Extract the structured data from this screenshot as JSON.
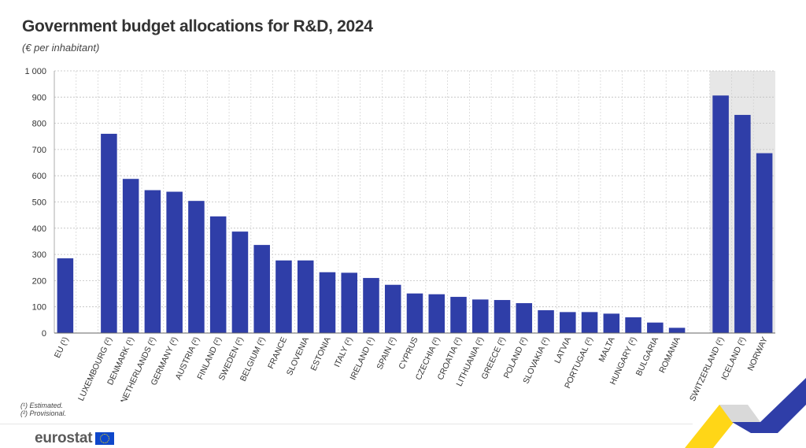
{
  "title": "Government budget allocations for R&D, 2024",
  "subtitle": "(€ per inhabitant)",
  "footnotes": [
    "(¹) Estimated.",
    "(²) Provisional."
  ],
  "brand": "eurostat",
  "colors": {
    "bar": "#2f3ea8",
    "highlight_bg": "#e7e7e7",
    "grid": "#bfbfbf",
    "text": "#333333"
  },
  "chart_data": {
    "type": "bar",
    "title": "Government budget allocations for R&D, 2024",
    "subtitle": "(€ per inhabitant)",
    "ylim": [
      0,
      1000
    ],
    "yticks": [
      0,
      100,
      200,
      300,
      400,
      500,
      600,
      700,
      800,
      900,
      1000
    ],
    "ytick_labels": [
      "0",
      "100",
      "200",
      "300",
      "400",
      "500",
      "600",
      "700",
      "800",
      "900",
      "1 000"
    ],
    "grid": true,
    "categories": [
      "EU (¹)",
      "",
      "LUXEMBOURG (²)",
      "DENMARK (¹)",
      "NETHERLANDS (²)",
      "GERMANY (²)",
      "AUSTRIA (²)",
      "FINLAND (²)",
      "SWEDEN (²)",
      "BELGIUM (²)",
      "FRANCE",
      "SLOVENIA",
      "ESTONIA",
      "ITALY (²)",
      "IRELAND (¹)",
      "SPAIN (²)",
      "CYPRUS",
      "CZECHIA (²)",
      "CROATIA (²)",
      "LITHUANIA (²)",
      "GREECE (²)",
      "POLAND (²)",
      "SLOVAKIA (²)",
      "LATVIA",
      "PORTUGAL (²)",
      "MALTA",
      "HUNGARY (²)",
      "BULGARIA",
      "ROMANIA",
      "",
      "SWITZERLAND (²)",
      "ICELAND (²)",
      "NORWAY"
    ],
    "values": [
      285,
      null,
      760,
      588,
      545,
      539,
      504,
      445,
      387,
      336,
      277,
      277,
      232,
      230,
      210,
      184,
      151,
      148,
      138,
      128,
      126,
      114,
      87,
      80,
      80,
      74,
      60,
      40,
      20,
      null,
      906,
      832,
      686
    ],
    "highlighted": [
      "SWITZERLAND (²)",
      "ICELAND (²)",
      "NORWAY"
    ]
  }
}
